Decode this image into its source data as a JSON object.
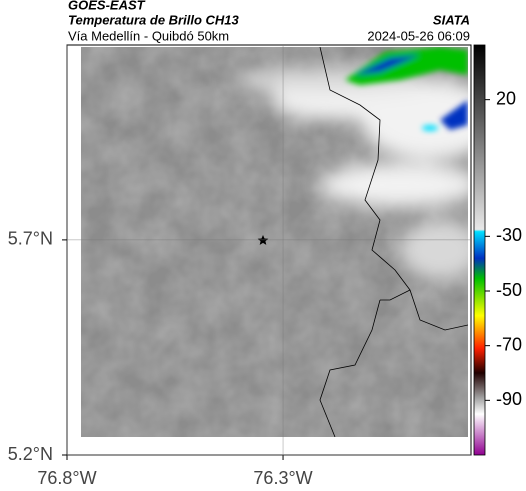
{
  "header": {
    "title": "GOES-EAST",
    "subtitle": "Temperatura de Brillo CH13",
    "source": "SIATA",
    "region": "Vía Medellín - Quibdó 50km",
    "datetime": "2024-05-26 06:09"
  },
  "map": {
    "xlim": [
      -76.8,
      -75.865
    ],
    "ylim": [
      5.2,
      6.153
    ],
    "xticks": [
      {
        "value": -76.8,
        "label": "76.8°W"
      },
      {
        "value": -76.3,
        "label": "76.3°W"
      }
    ],
    "yticks": [
      {
        "value": 5.2,
        "label": "5.2°N"
      },
      {
        "value": 5.7,
        "label": "5.7°N"
      }
    ],
    "grid": true
  },
  "colorbar": {
    "clim": [
      -110,
      40
    ],
    "ticks": [
      20,
      -30,
      -50,
      -70,
      -90
    ]
  }
}
